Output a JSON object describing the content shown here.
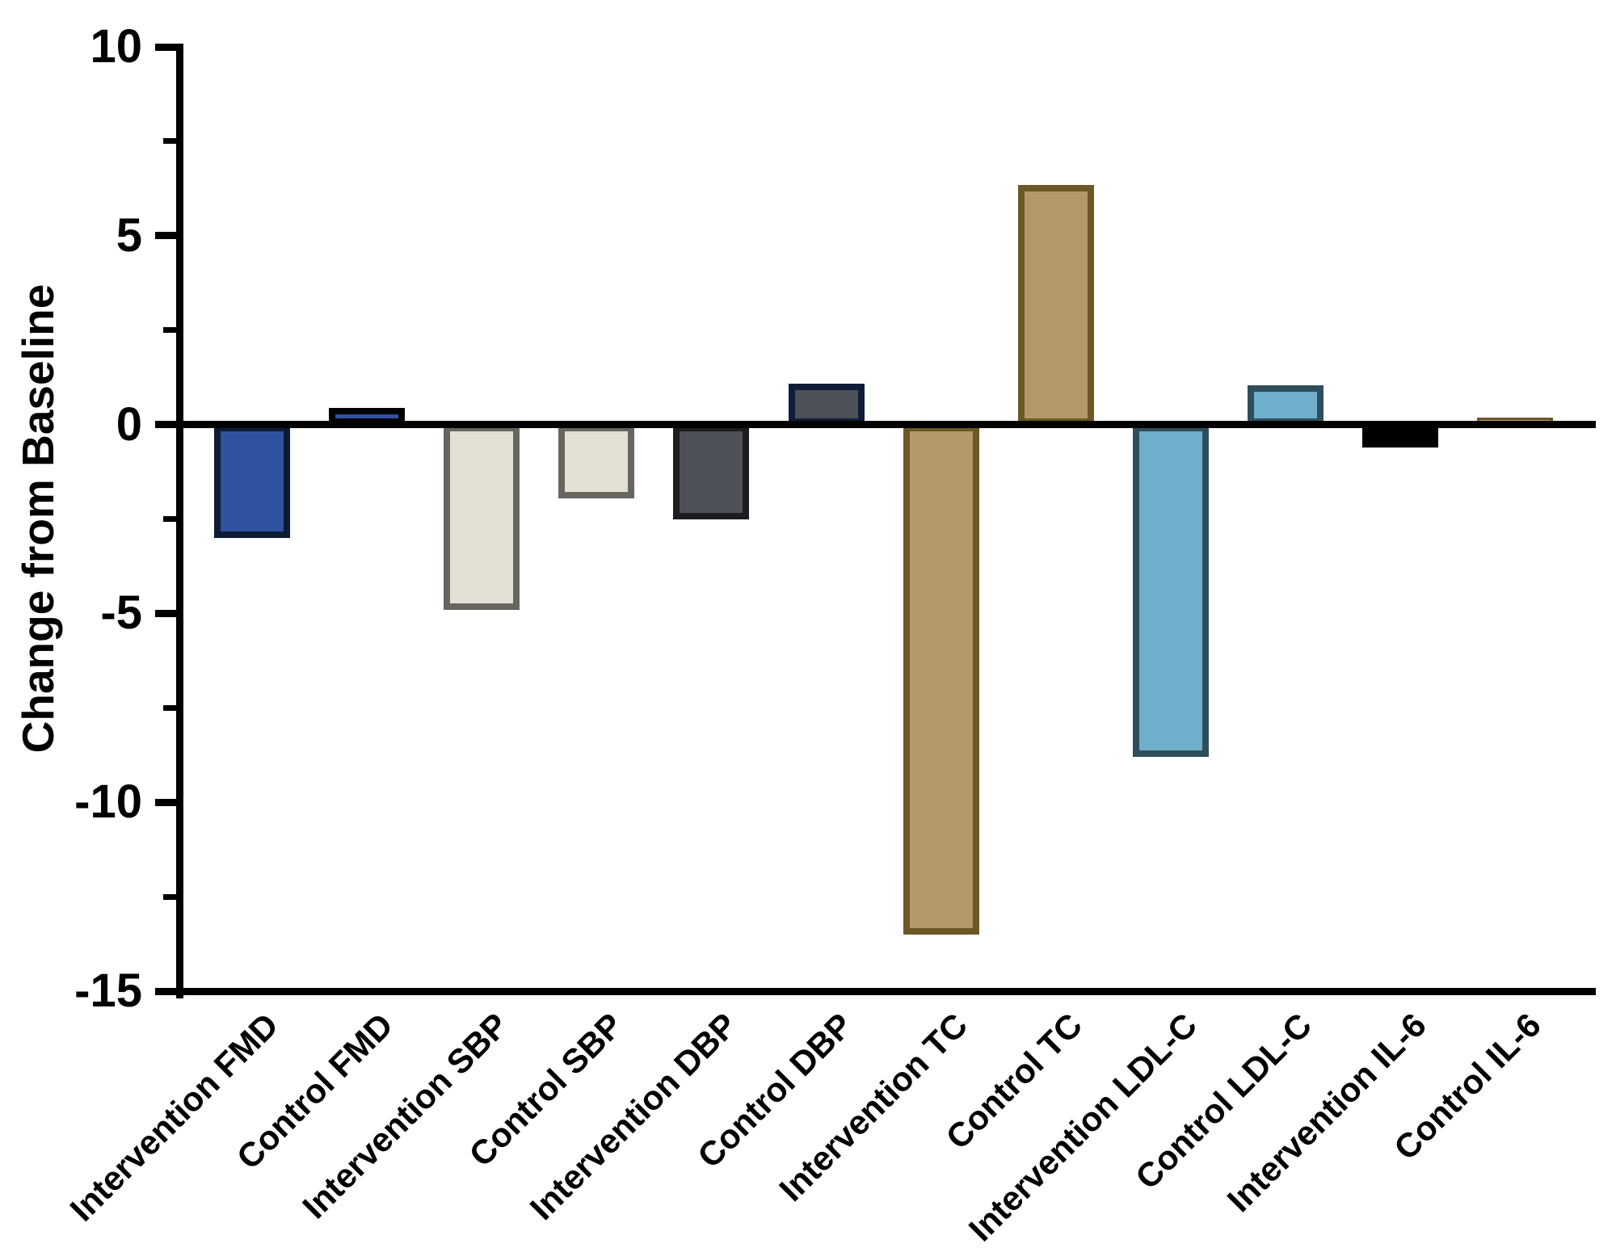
{
  "figure": {
    "background": "#ffffff",
    "axis_color": "#000000"
  },
  "chart_data": {
    "type": "bar",
    "title": "",
    "xlabel": "",
    "ylabel": "Change from Baseline",
    "ylim": [
      -15,
      10
    ],
    "grid": false,
    "legend": "none",
    "categories": [
      "Intervention FMD",
      "Control FMD",
      "Intervention SBP",
      "Control SBP",
      "Intervention DBP",
      "Control DBP",
      "Intervention TC",
      "Control TC",
      "Intervention LDL-C",
      "Control LDL-C",
      "Intervention IL-6",
      "Control IL-6"
    ],
    "values": [
      -3.0,
      0.45,
      -4.9,
      -1.95,
      -2.5,
      1.1,
      -13.5,
      6.35,
      -8.8,
      1.05,
      -0.6,
      0.2
    ],
    "bar_fill_colors": [
      "#2f52a0",
      "#2f52a0",
      "#e5e0d4",
      "#e5e0d4",
      "#4d5157",
      "#4d5157",
      "#b3996a",
      "#b3996a",
      "#6fafcb",
      "#6fafcb",
      "#000000",
      "#b3996a"
    ],
    "bar_edge_colors": [
      "#0d1b35",
      "#000000",
      "#67655e",
      "#67655e",
      "#1b1d21",
      "#101d38",
      "#6c5826",
      "#6c5826",
      "#2f4e5b",
      "#2f4e5b",
      "#000000",
      "#6c5826"
    ]
  },
  "y_axis": {
    "title": "Change from Baseline",
    "major_tick_values": [
      10,
      5,
      0,
      -5,
      -10,
      -15
    ],
    "major_tick_labels": [
      "10",
      "5",
      "0",
      "-5",
      "-10",
      "-15"
    ],
    "minor_tick_values": [
      7.5,
      2.5,
      -2.5,
      -7.5,
      -12.5
    ]
  }
}
